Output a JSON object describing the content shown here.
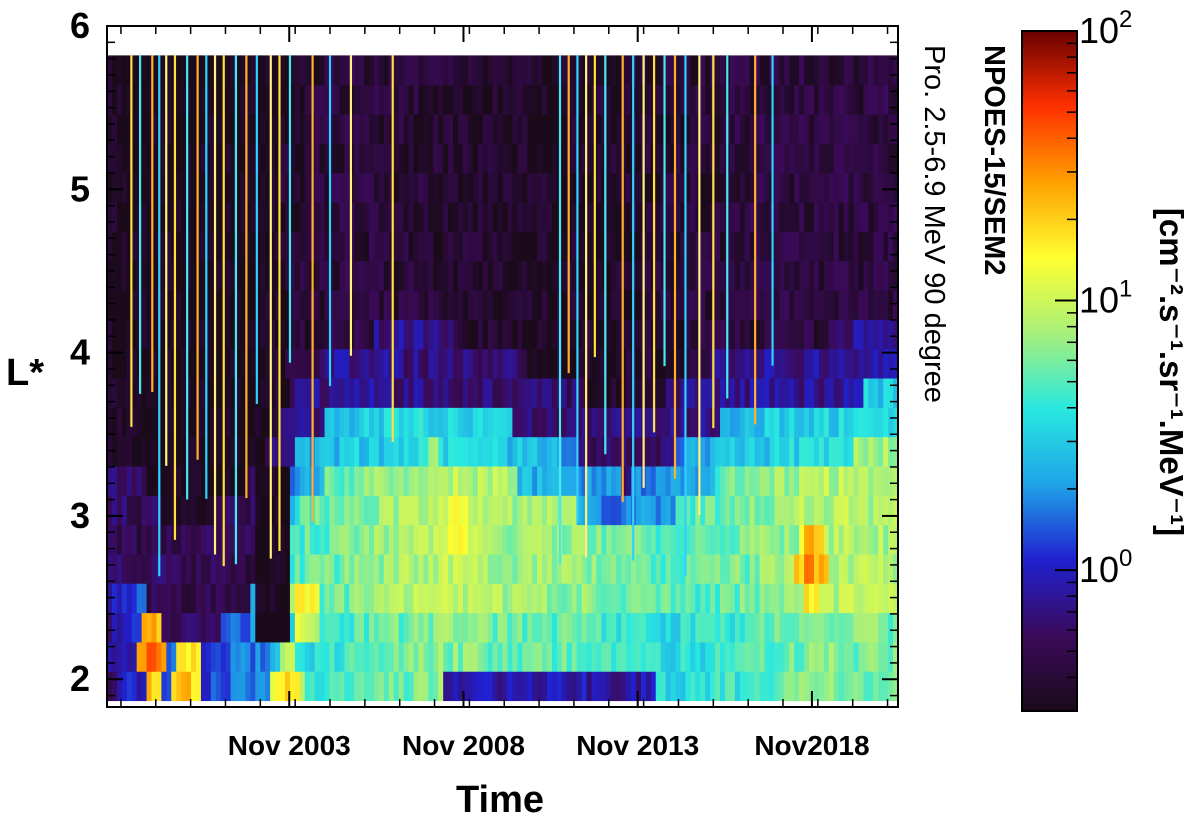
{
  "chart_data": {
    "type": "heatmap",
    "title": "NPOES-15/SEM2",
    "subtitle": "Pro. 2.5-6.9 MeV 90 degree",
    "xlabel": "Time",
    "ylabel": "L*",
    "x_ticks": [
      "Nov 2003",
      "Nov 2008",
      "Nov 2013",
      "Nov2018"
    ],
    "x_tick_values": [
      2003.83,
      2008.83,
      2013.83,
      2018.83
    ],
    "xlim": [
      1998.6,
      2021.3
    ],
    "y_ticks": [
      "2",
      "3",
      "4",
      "5",
      "6"
    ],
    "y_tick_values": [
      2,
      3,
      4,
      5,
      6
    ],
    "ylim": [
      1.83,
      6
    ],
    "data_ylim": [
      1.87,
      5.82
    ],
    "colorbar": {
      "label": "[cm⁻².s⁻¹.sr⁻¹.MeV⁻¹]",
      "scale": "log",
      "range": [
        0.3,
        100
      ],
      "ticks": [
        {
          "value": 1,
          "base": "10",
          "exp": "0"
        },
        {
          "value": 10,
          "base": "10",
          "exp": "1"
        },
        {
          "value": 100,
          "base": "10",
          "exp": "2"
        }
      ],
      "colors": [
        "#1a0a1a",
        "#3b0a5a",
        "#2020d0",
        "#1fa3e8",
        "#28e8e0",
        "#a8f07a",
        "#ffff30",
        "#ffa000",
        "#ff3000",
        "#6a0000"
      ]
    },
    "time_profile": [
      {
        "t": 1998.6,
        "inner": 0.9,
        "slot": 0.6,
        "outer": 0.35,
        "edge": 3.0
      },
      {
        "t": 1999.6,
        "inner": 1.5,
        "slot": 0.5,
        "outer": 0.3,
        "edge": 2.9
      },
      {
        "t": 2000.4,
        "inner": 2.0,
        "slot": 0.55,
        "outer": 0.3,
        "edge": 2.5
      },
      {
        "t": 2001.2,
        "inner": 1.8,
        "slot": 0.55,
        "outer": 0.3,
        "edge": 2.5
      },
      {
        "t": 2002.0,
        "inner": 2.0,
        "slot": 0.5,
        "outer": 0.3,
        "edge": 2.7
      },
      {
        "t": 2003.0,
        "inner": 2.5,
        "slot": 0.5,
        "outer": 0.3,
        "edge": 2.9
      },
      {
        "t": 2004.0,
        "inner": 5.0,
        "slot": 2.0,
        "outer": 0.4,
        "edge": 3.4
      },
      {
        "t": 2005.5,
        "inner": 6.0,
        "slot": 3.0,
        "outer": 0.45,
        "edge": 3.7
      },
      {
        "t": 2008.0,
        "inner": 9.0,
        "slot": 3.5,
        "outer": 0.4,
        "edge": 3.75
      },
      {
        "t": 2010.0,
        "inner": 8.0,
        "slot": 3.0,
        "outer": 0.35,
        "edge": 3.6
      },
      {
        "t": 2012.0,
        "inner": 7.0,
        "slot": 2.0,
        "outer": 0.35,
        "edge": 3.4
      },
      {
        "t": 2013.5,
        "inner": 5.5,
        "slot": 1.8,
        "outer": 0.35,
        "edge": 3.2
      },
      {
        "t": 2015.0,
        "inner": 5.0,
        "slot": 2.0,
        "outer": 0.4,
        "edge": 3.4
      },
      {
        "t": 2017.0,
        "inner": 6.0,
        "slot": 3.0,
        "outer": 0.45,
        "edge": 3.7
      },
      {
        "t": 2019.0,
        "inner": 9.0,
        "slot": 3.5,
        "outer": 0.45,
        "edge": 3.7
      },
      {
        "t": 2021.3,
        "inner": 8.0,
        "slot": 3.0,
        "outer": 0.45,
        "edge": 3.8
      }
    ],
    "dropouts": [
      {
        "t_start": 2002.9,
        "t_end": 2003.9,
        "l_min": 2.15,
        "l_max": 3.3,
        "value": 0.3
      },
      {
        "t_start": 2000.6,
        "t_end": 2001.0,
        "l_min": 2.4,
        "l_max": 2.8,
        "value": 0.5
      }
    ],
    "hotspots": [
      {
        "t": 1999.9,
        "l": 2.15,
        "value": 40
      },
      {
        "t": 2000.9,
        "l": 2.0,
        "value": 25
      },
      {
        "t": 2004.3,
        "l": 2.45,
        "value": 20
      },
      {
        "t": 2008.6,
        "l": 2.95,
        "value": 18
      },
      {
        "t": 2018.8,
        "l": 2.7,
        "value": 35
      },
      {
        "t": 2003.8,
        "l": 1.95,
        "value": 20
      }
    ],
    "inner_trough": [
      {
        "t_start": 2008.2,
        "t_end": 2014.4,
        "l_min": 1.87,
        "l_max": 2.12,
        "value": 0.9
      }
    ],
    "injection_spikes": [
      1999.3,
      1999.55,
      1999.9,
      2000.1,
      2000.3,
      2000.55,
      2000.9,
      2001.2,
      2001.45,
      2001.7,
      2001.95,
      2002.3,
      2002.6,
      2002.9,
      2003.3,
      2003.55,
      2003.85,
      2004.5,
      2005.0,
      2005.6,
      2006.8,
      2011.6,
      2011.85,
      2012.1,
      2012.35,
      2012.6,
      2012.9,
      2013.4,
      2013.7,
      2014.0,
      2014.3,
      2014.6,
      2014.9,
      2015.2,
      2015.6,
      2016.0,
      2016.4,
      2017.2,
      2017.7
    ]
  }
}
